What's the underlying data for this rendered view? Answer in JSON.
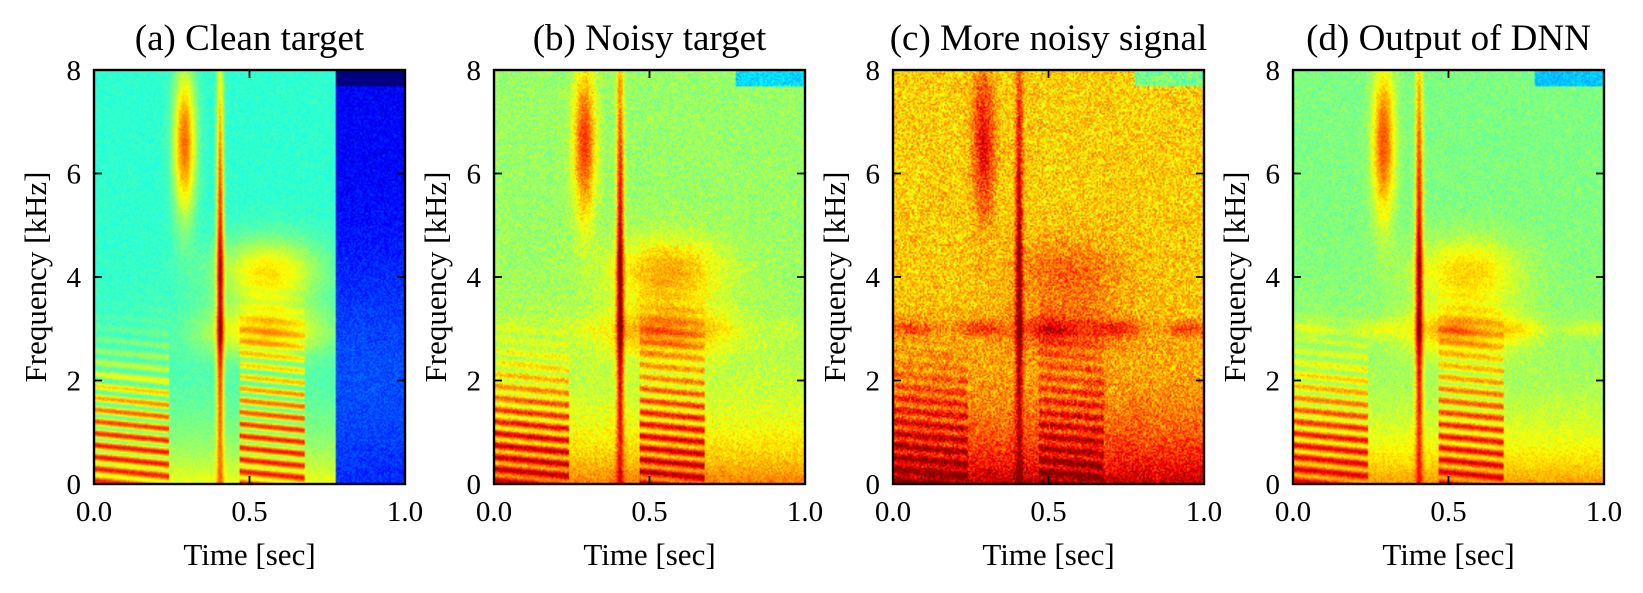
{
  "chart_data": [
    {
      "type": "heatmap",
      "title": "(a) Clean target",
      "xlabel": "Time [sec]",
      "ylabel": "Frequency [kHz]",
      "xlim": [
        0.0,
        1.0
      ],
      "ylim": [
        0,
        8
      ],
      "xticks": [
        "0.0",
        "0.5",
        "1.0"
      ],
      "yticks": [
        "0",
        "2",
        "4",
        "6",
        "8"
      ],
      "base_level": 0.42,
      "noise_floor": 0.0,
      "random_jitter": 0.05,
      "time_cutoff": 0.78,
      "low_band_level": 0.55,
      "harmonic_strength": 0.34,
      "formant_strength": 0.22,
      "fricative_strength": 0.35,
      "plosive_strength": 0.45,
      "background_line_strength": 0.0,
      "cutoff_blue_level": 0.12
    },
    {
      "type": "heatmap",
      "title": "(b) Noisy target",
      "xlabel": "Time [sec]",
      "ylabel": "Frequency [kHz]",
      "xlim": [
        0.0,
        1.0
      ],
      "ylim": [
        0,
        8
      ],
      "xticks": [
        "0.0",
        "0.5",
        "1.0"
      ],
      "yticks": [
        "0",
        "2",
        "4",
        "6",
        "8"
      ],
      "base_level": 0.5,
      "noise_floor": 0.08,
      "random_jitter": 0.06,
      "time_cutoff": 1.0,
      "low_band_level": 0.66,
      "harmonic_strength": 0.28,
      "formant_strength": 0.18,
      "fricative_strength": 0.3,
      "plosive_strength": 0.42,
      "background_line_strength": 0.03,
      "cutoff_blue_level": 0.0
    },
    {
      "type": "heatmap",
      "title": "(c) More noisy signal",
      "xlabel": "Time [sec]",
      "ylabel": "Frequency [kHz]",
      "xlim": [
        0.0,
        1.0
      ],
      "ylim": [
        0,
        8
      ],
      "xticks": [
        "0.0",
        "0.5",
        "1.0"
      ],
      "yticks": [
        "0",
        "2",
        "4",
        "6",
        "8"
      ],
      "base_level": 0.62,
      "noise_floor": 0.16,
      "random_jitter": 0.08,
      "time_cutoff": 1.0,
      "low_band_level": 0.78,
      "harmonic_strength": 0.16,
      "formant_strength": 0.1,
      "fricative_strength": 0.22,
      "plosive_strength": 0.3,
      "background_line_strength": 0.12,
      "cutoff_blue_level": 0.0
    },
    {
      "type": "heatmap",
      "title": "(d) Output of DNN",
      "xlabel": "Time [sec]",
      "ylabel": "Frequency [kHz]",
      "xlim": [
        0.0,
        1.0
      ],
      "ylim": [
        0,
        8
      ],
      "xticks": [
        "0.0",
        "0.5",
        "1.0"
      ],
      "yticks": [
        "0",
        "2",
        "4",
        "6",
        "8"
      ],
      "base_level": 0.48,
      "noise_floor": 0.06,
      "random_jitter": 0.05,
      "time_cutoff": 1.0,
      "low_band_level": 0.64,
      "harmonic_strength": 0.27,
      "formant_strength": 0.16,
      "fricative_strength": 0.3,
      "plosive_strength": 0.42,
      "background_line_strength": 0.07,
      "cutoff_blue_level": 0.0
    }
  ]
}
